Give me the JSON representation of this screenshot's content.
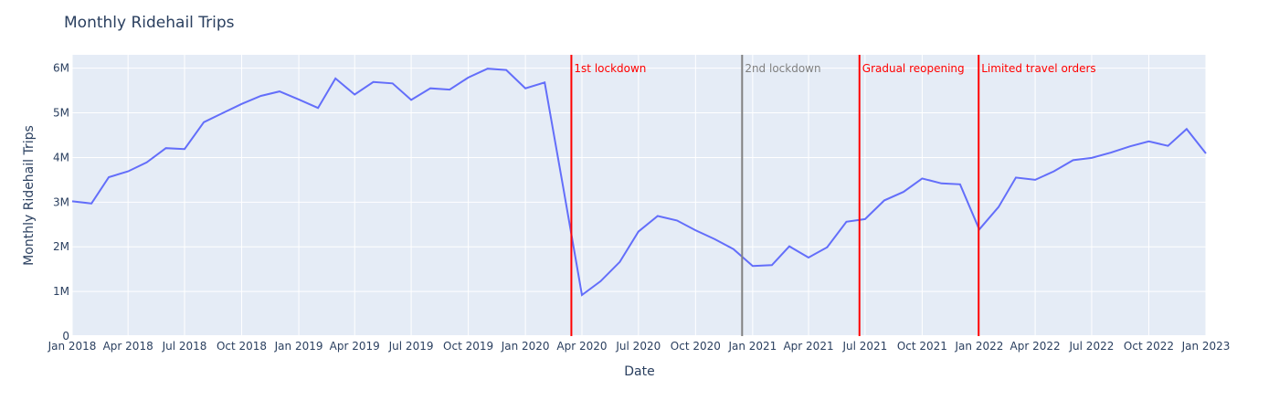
{
  "chart_data": {
    "type": "line",
    "title": "Monthly Ridehail Trips",
    "xlabel": "Date",
    "ylabel": "Monthly Ridehail Trips",
    "grid": true,
    "plot_background": "#e5ecf6",
    "line_color": "#636efa",
    "xlim": [
      "2018-01-01",
      "2023-01-01"
    ],
    "ylim": [
      0,
      6300000
    ],
    "x_ticks": [
      {
        "date": "2018-01-01",
        "label": "Jan 2018"
      },
      {
        "date": "2018-04-01",
        "label": "Apr 2018"
      },
      {
        "date": "2018-07-01",
        "label": "Jul 2018"
      },
      {
        "date": "2018-10-01",
        "label": "Oct 2018"
      },
      {
        "date": "2019-01-01",
        "label": "Jan 2019"
      },
      {
        "date": "2019-04-01",
        "label": "Apr 2019"
      },
      {
        "date": "2019-07-01",
        "label": "Jul 2019"
      },
      {
        "date": "2019-10-01",
        "label": "Oct 2019"
      },
      {
        "date": "2020-01-01",
        "label": "Jan 2020"
      },
      {
        "date": "2020-04-01",
        "label": "Apr 2020"
      },
      {
        "date": "2020-07-01",
        "label": "Jul 2020"
      },
      {
        "date": "2020-10-01",
        "label": "Oct 2020"
      },
      {
        "date": "2021-01-01",
        "label": "Jan 2021"
      },
      {
        "date": "2021-04-01",
        "label": "Apr 2021"
      },
      {
        "date": "2021-07-01",
        "label": "Jul 2021"
      },
      {
        "date": "2021-10-01",
        "label": "Oct 2021"
      },
      {
        "date": "2022-01-01",
        "label": "Jan 2022"
      },
      {
        "date": "2022-04-01",
        "label": "Apr 2022"
      },
      {
        "date": "2022-07-01",
        "label": "Jul 2022"
      },
      {
        "date": "2022-10-01",
        "label": "Oct 2022"
      },
      {
        "date": "2023-01-01",
        "label": "Jan 2023"
      }
    ],
    "y_ticks": [
      {
        "value": 0,
        "label": "0"
      },
      {
        "value": 1000000,
        "label": "1M"
      },
      {
        "value": 2000000,
        "label": "2M"
      },
      {
        "value": 3000000,
        "label": "3M"
      },
      {
        "value": 4000000,
        "label": "4M"
      },
      {
        "value": 5000000,
        "label": "5M"
      },
      {
        "value": 6000000,
        "label": "6M"
      }
    ],
    "series": [
      {
        "x": [
          "2018-01-01",
          "2018-02-01",
          "2018-03-01",
          "2018-04-01",
          "2018-05-01",
          "2018-06-01",
          "2018-07-01",
          "2018-08-01",
          "2018-09-01",
          "2018-10-01",
          "2018-11-01",
          "2018-12-01",
          "2019-01-01",
          "2019-02-01",
          "2019-03-01",
          "2019-04-01",
          "2019-05-01",
          "2019-06-01",
          "2019-07-01",
          "2019-08-01",
          "2019-09-01",
          "2019-10-01",
          "2019-11-01",
          "2019-12-01",
          "2020-01-01",
          "2020-02-01",
          "2020-03-01",
          "2020-04-01",
          "2020-05-01",
          "2020-06-01",
          "2020-07-01",
          "2020-08-01",
          "2020-09-01",
          "2020-10-01",
          "2020-11-01",
          "2020-12-01",
          "2021-01-01",
          "2021-02-01",
          "2021-03-01",
          "2021-04-01",
          "2021-05-01",
          "2021-06-01",
          "2021-07-01",
          "2021-08-01",
          "2021-09-01",
          "2021-10-01",
          "2021-11-01",
          "2021-12-01",
          "2022-01-01",
          "2022-02-01",
          "2022-03-01",
          "2022-04-01",
          "2022-05-01",
          "2022-06-01",
          "2022-07-01",
          "2022-08-01",
          "2022-09-01",
          "2022-10-01",
          "2022-11-01",
          "2022-12-01",
          "2023-01-01"
        ],
        "y": [
          3020000,
          2970000,
          3560000,
          3690000,
          3890000,
          4210000,
          4190000,
          4790000,
          5000000,
          5200000,
          5380000,
          5480000,
          5300000,
          5110000,
          5770000,
          5410000,
          5690000,
          5660000,
          5290000,
          5550000,
          5520000,
          5790000,
          5990000,
          5960000,
          5550000,
          5680000,
          3400000,
          920000,
          1230000,
          1660000,
          2340000,
          2690000,
          2590000,
          2370000,
          2170000,
          1950000,
          1570000,
          1590000,
          2010000,
          1760000,
          1990000,
          2560000,
          2620000,
          3040000,
          3230000,
          3530000,
          3420000,
          3400000,
          2390000,
          2890000,
          3550000,
          3500000,
          3690000,
          3940000,
          3990000,
          4110000,
          4250000,
          4360000,
          4260000,
          4640000,
          4090000
        ]
      }
    ],
    "events": [
      {
        "date": "2020-03-15",
        "label": "1st lockdown",
        "color": "#ff0000"
      },
      {
        "date": "2020-12-15",
        "label": "2nd lockdown",
        "color": "#808080"
      },
      {
        "date": "2021-06-22",
        "label": "Gradual reopening",
        "color": "#ff0000"
      },
      {
        "date": "2021-12-31",
        "label": "Limited travel orders",
        "color": "#ff0000"
      }
    ]
  }
}
